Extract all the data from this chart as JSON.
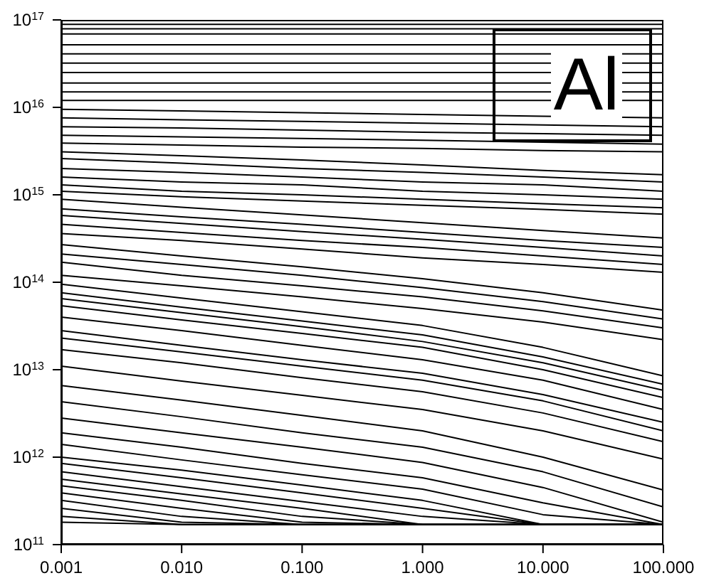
{
  "chart_data": {
    "type": "line",
    "color": "#000000",
    "log": "xy",
    "grid": false,
    "marker": "none",
    "line_style": "solid",
    "annotations": [
      "Al"
    ],
    "x": [
      0.001,
      0.01,
      0.1,
      1,
      10,
      100
    ],
    "xlim": [
      0.001,
      100
    ],
    "xticks": [
      {
        "value": 0.001,
        "label": "0.001"
      },
      {
        "value": 0.01,
        "label": "0.010"
      },
      {
        "value": 0.1,
        "label": "0.100"
      },
      {
        "value": 1,
        "label": "1.000"
      },
      {
        "value": 10,
        "label": "10.000"
      },
      {
        "value": 100,
        "label": "100.000"
      }
    ],
    "ylim": [
      100000000000.0,
      1e+17
    ],
    "yticks": [
      {
        "value": 100000000000.0,
        "label": "10$^{11}$"
      },
      {
        "value": 1000000000000.0,
        "label": "10$^{12}$"
      },
      {
        "value": 10000000000000.0,
        "label": "10$^{13}$"
      },
      {
        "value": 100000000000000.0,
        "label": "10$^{14}$"
      },
      {
        "value": 1000000000000000.0,
        "label": "10$^{15}$"
      },
      {
        "value": 1e+16,
        "label": "10$^{16}$"
      },
      {
        "value": 1e+17,
        "label": "10$^{17}$"
      }
    ],
    "series": [
      {
        "values": [
          8.9e+16,
          8.9e+16,
          8.9e+16,
          8.9e+16,
          8.9e+16,
          8.9e+16
        ]
      },
      {
        "values": [
          7.9e+16,
          7.9e+16,
          7.9e+16,
          7.9e+16,
          7.9e+16,
          7.9e+16
        ]
      },
      {
        "values": [
          6.9e+16,
          6.9e+16,
          6.9e+16,
          6.9e+16,
          6.9e+16,
          6.9e+16
        ]
      },
      {
        "values": [
          5.2e+16,
          5.2e+16,
          5.2e+16,
          5.2e+16,
          5.2e+16,
          5.2e+16
        ]
      },
      {
        "values": [
          4.1e+16,
          4.1e+16,
          4.1e+16,
          4.1e+16,
          4.1e+16,
          4.1e+16
        ]
      },
      {
        "values": [
          3.2e+16,
          3.2e+16,
          3.2e+16,
          3.2e+16,
          3.2e+16,
          3.2e+16
        ]
      },
      {
        "values": [
          2.5e+16,
          2.5e+16,
          2.5e+16,
          2.5e+16,
          2.5e+16,
          2.5e+16
        ]
      },
      {
        "values": [
          1.9e+16,
          1.9e+16,
          1.9e+16,
          1.9e+16,
          1.9e+16,
          1.9e+16
        ]
      },
      {
        "values": [
          1.5e+16,
          1.5e+16,
          1.5e+16,
          1.5e+16,
          1.5e+16,
          1.5e+16
        ]
      },
      {
        "values": [
          1.2e+16,
          1.2e+16,
          1.2e+16,
          1.2e+16,
          1.2e+16,
          1.2e+16
        ]
      },
      {
        "values": [
          9500000000000000.0,
          9100000000000000.0,
          8700000000000000.0,
          8300000000000000.0,
          7900000000000000.0,
          7600000000000000.0
        ]
      },
      {
        "values": [
          7600000000000000.0,
          7200000000000000.0,
          6900000000000000.0,
          6600000000000000.0,
          6300000000000000.0,
          6000000000000000.0
        ]
      },
      {
        "values": [
          6000000000000000.0,
          5800000000000000.0,
          5500000000000000.0,
          5200000000000000.0,
          5000000000000000.0,
          4800000000000000.0
        ]
      },
      {
        "values": [
          4800000000000000.0,
          4600000000000000.0,
          4400000000000000.0,
          4200000000000000.0,
          4000000000000000.0,
          3800000000000000.0
        ]
      },
      {
        "values": [
          3900000000000000.0,
          3700000000000000.0,
          3500000000000000.0,
          3400000000000000.0,
          3200000000000000.0,
          3100000000000000.0
        ]
      },
      {
        "values": [
          3100000000000000.0,
          2800000000000000.0,
          2500000000000000.0,
          2200000000000000.0,
          1900000000000000.0,
          1700000000000000.0
        ]
      },
      {
        "values": [
          2600000000000000.0,
          2300000000000000.0,
          2000000000000000.0,
          1800000000000000.0,
          1600000000000000.0,
          1400000000000000.0
        ]
      },
      {
        "values": [
          2000000000000000.0,
          1800000000000000.0,
          1600000000000000.0,
          1400000000000000.0,
          1300000000000000.0,
          1100000000000000.0
        ]
      },
      {
        "values": [
          1600000000000000.0,
          1400000000000000.0,
          1300000000000000.0,
          1100000000000000.0,
          1000000000000000.0,
          890000000000000.0
        ]
      },
      {
        "values": [
          1300000000000000.0,
          1100000000000000.0,
          1000000000000000.0,
          890000000000000.0,
          790000000000000.0,
          710000000000000.0
        ]
      },
      {
        "values": [
          1100000000000000.0,
          950000000000000.0,
          850000000000000.0,
          760000000000000.0,
          680000000000000.0,
          600000000000000.0
        ]
      },
      {
        "values": [
          890000000000000.0,
          720000000000000.0,
          590000000000000.0,
          480000000000000.0,
          390000000000000.0,
          320000000000000.0
        ]
      },
      {
        "values": [
          690000000000000.0,
          560000000000000.0,
          460000000000000.0,
          370000000000000.0,
          300000000000000.0,
          250000000000000.0
        ]
      },
      {
        "values": [
          580000000000000.0,
          470000000000000.0,
          380000000000000.0,
          310000000000000.0,
          250000000000000.0,
          200000000000000.0
        ]
      },
      {
        "values": [
          460000000000000.0,
          370000000000000.0,
          300000000000000.0,
          250000000000000.0,
          200000000000000.0,
          160000000000000.0
        ]
      },
      {
        "values": [
          360000000000000.0,
          300000000000000.0,
          240000000000000.0,
          190000000000000.0,
          160000000000000.0,
          130000000000000.0
        ]
      },
      {
        "values": [
          270000000000000.0,
          200000000000000.0,
          150000000000000.0,
          110000000000000.0,
          76000000000000.0,
          48000000000000.0
        ]
      },
      {
        "values": [
          210000000000000.0,
          160000000000000.0,
          120000000000000.0,
          87000000000000.0,
          60000000000000.0,
          38000000000000.0
        ]
      },
      {
        "values": [
          170000000000000.0,
          120000000000000.0,
          91000000000000.0,
          68000000000000.0,
          47000000000000.0,
          30000000000000.0
        ]
      },
      {
        "values": [
          120000000000000.0,
          91000000000000.0,
          68000000000000.0,
          50000000000000.0,
          35000000000000.0,
          22000000000000.0
        ]
      },
      {
        "values": [
          95000000000000.0,
          66000000000000.0,
          46000000000000.0,
          32000000000000.0,
          18000000000000.0,
          8500000000000.0
        ]
      },
      {
        "values": [
          76000000000000.0,
          52000000000000.0,
          36000000000000.0,
          25000000000000.0,
          14000000000000.0,
          6800000000000.0
        ]
      },
      {
        "values": [
          65000000000000.0,
          45000000000000.0,
          31000000000000.0,
          21000000000000.0,
          12000000000000.0,
          5800000000000.0
        ]
      },
      {
        "values": [
          54000000000000.0,
          37000000000000.0,
          26000000000000.0,
          18000000000000.0,
          10000000000000.0,
          4800000000000.0
        ]
      },
      {
        "values": [
          40000000000000.0,
          28000000000000.0,
          19000000000000.0,
          13000000000000.0,
          7600000000000.0,
          3500000000000.0
        ]
      },
      {
        "values": [
          28000000000000.0,
          19000000000000.0,
          13000000000000.0,
          9100000000000.0,
          5200000000000.0,
          2500000000000.0
        ]
      },
      {
        "values": [
          23000000000000.0,
          16000000000000.0,
          11000000000000.0,
          7600000000000.0,
          4400000000000.0,
          2000000000000.0
        ]
      },
      {
        "values": [
          17000000000000.0,
          12000000000000.0,
          8100000000000.0,
          5600000000000.0,
          3200000000000.0,
          1500000000000.0
        ]
      },
      {
        "values": [
          11000000000000.0,
          7400000000000.0,
          5100000000000.0,
          3500000000000.0,
          2000000000000.0,
          950000000000.0
        ]
      },
      {
        "values": [
          6600000000000.0,
          4500000000000.0,
          3000000000000.0,
          2000000000000.0,
          1000000000000.0,
          420000000000.0
        ]
      },
      {
        "values": [
          4300000000000.0,
          2900000000000.0,
          1900000000000.0,
          1300000000000.0,
          680000000000.0,
          270000000000.0
        ]
      },
      {
        "values": [
          2800000000000.0,
          1900000000000.0,
          1300000000000.0,
          870000000000.0,
          450000000000.0,
          180000000000.0
        ]
      },
      {
        "values": [
          1900000000000.0,
          1300000000000.0,
          850000000000.0,
          580000000000.0,
          300000000000.0,
          170000000000.0
        ]
      },
      {
        "values": [
          1400000000000.0,
          930000000000.0,
          630000000000.0,
          430000000000.0,
          220000000000.0,
          170000000000.0
        ]
      },
      {
        "values": [
          1000000000000.0,
          710000000000.0,
          480000000000.0,
          320000000000.0,
          170000000000.0,
          170000000000.0
        ]
      },
      {
        "values": [
          850000000000.0,
          580000000000.0,
          390000000000.0,
          260000000000.0,
          170000000000.0,
          170000000000.0
        ]
      },
      {
        "values": [
          680000000000.0,
          460000000000.0,
          310000000000.0,
          210000000000.0,
          170000000000.0,
          170000000000.0
        ]
      },
      {
        "values": [
          560000000000.0,
          380000000000.0,
          260000000000.0,
          170000000000.0,
          170000000000.0,
          170000000000.0
        ]
      },
      {
        "values": [
          470000000000.0,
          320000000000.0,
          210000000000.0,
          170000000000.0,
          170000000000.0,
          170000000000.0
        ]
      },
      {
        "values": [
          390000000000.0,
          260000000000.0,
          180000000000.0,
          170000000000.0,
          170000000000.0,
          170000000000.0
        ]
      },
      {
        "values": [
          320000000000.0,
          210000000000.0,
          170000000000.0,
          170000000000.0,
          170000000000.0,
          170000000000.0
        ]
      },
      {
        "values": [
          260000000000.0,
          180000000000.0,
          170000000000.0,
          170000000000.0,
          170000000000.0,
          170000000000.0
        ]
      },
      {
        "values": [
          210000000000.0,
          170000000000.0,
          170000000000.0,
          170000000000.0,
          170000000000.0,
          170000000000.0
        ]
      },
      {
        "values": [
          180000000000.0,
          170000000000.0,
          170000000000.0,
          170000000000.0,
          170000000000.0,
          170000000000.0
        ]
      }
    ]
  }
}
